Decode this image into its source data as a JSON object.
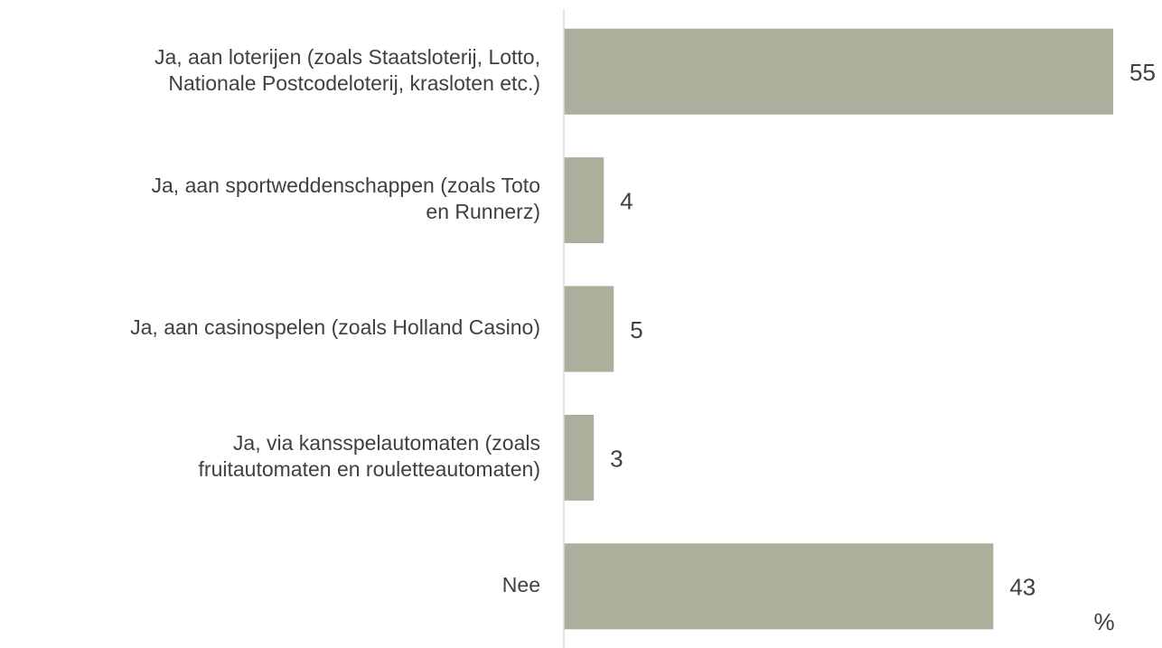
{
  "chart_data": {
    "type": "bar",
    "orientation": "horizontal",
    "categories": [
      [
        "Ja, aan loterijen (zoals Staatsloterij, Lotto,",
        "Nationale Postcodeloterij, krasloten etc.)"
      ],
      [
        "Ja, aan sportweddenschappen (zoals Toto",
        "en Runnerz)"
      ],
      [
        "Ja, aan casinospelen (zoals Holland Casino)"
      ],
      [
        "Ja, via kansspelautomaten (zoals",
        "fruitautomaten en rouletteautomaten)"
      ],
      [
        "Nee"
      ]
    ],
    "values": [
      55,
      4,
      5,
      3,
      43
    ],
    "color": "#adaf9c",
    "xlim": [
      0,
      55
    ],
    "unit_label": "%"
  }
}
